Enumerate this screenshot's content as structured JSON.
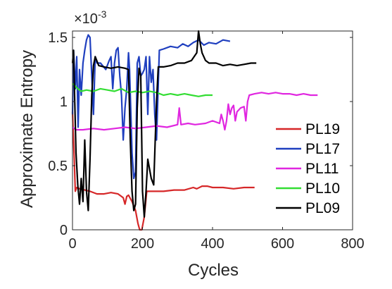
{
  "chart_data": {
    "type": "line",
    "title": "",
    "xlabel": "Cycles",
    "ylabel": "Approximate Entropy",
    "y_exponent_label": "×10",
    "y_exponent_power": "-3",
    "xlim": [
      0,
      800
    ],
    "ylim": [
      0,
      1.55
    ],
    "x_ticks": [
      "0",
      "200",
      "400",
      "600",
      "800"
    ],
    "y_ticks": [
      "0",
      "0.5",
      "1",
      "1.5"
    ],
    "grid": false,
    "legend_position": "right",
    "series": [
      {
        "name": "PL19",
        "color": "#d62728",
        "points": [
          [
            0,
            0.92
          ],
          [
            5,
            0.55
          ],
          [
            8,
            0.3
          ],
          [
            12,
            0.33
          ],
          [
            20,
            0.32
          ],
          [
            35,
            0.31
          ],
          [
            50,
            0.3
          ],
          [
            70,
            0.28
          ],
          [
            90,
            0.28
          ],
          [
            110,
            0.29
          ],
          [
            130,
            0.28
          ],
          [
            145,
            0.25
          ],
          [
            150,
            0.2
          ],
          [
            155,
            0.26
          ],
          [
            160,
            0.27
          ],
          [
            170,
            0.22
          ],
          [
            180,
            0.15
          ],
          [
            187,
            0.05
          ],
          [
            192,
            0.0
          ],
          [
            198,
            0.0
          ],
          [
            205,
            0.1
          ],
          [
            212,
            0.3
          ],
          [
            230,
            0.3
          ],
          [
            260,
            0.3
          ],
          [
            290,
            0.31
          ],
          [
            320,
            0.31
          ],
          [
            345,
            0.33
          ],
          [
            355,
            0.32
          ],
          [
            370,
            0.34
          ],
          [
            385,
            0.34
          ],
          [
            400,
            0.33
          ],
          [
            430,
            0.33
          ],
          [
            460,
            0.32
          ],
          [
            490,
            0.33
          ],
          [
            520,
            0.33
          ]
        ]
      },
      {
        "name": "PL17",
        "color": "#1f3fbf",
        "points": [
          [
            0,
            0.9
          ],
          [
            3,
            1.4
          ],
          [
            8,
            1.1
          ],
          [
            12,
            1.35
          ],
          [
            16,
            0.8
          ],
          [
            20,
            1.25
          ],
          [
            25,
            1.05
          ],
          [
            30,
            1.3
          ],
          [
            35,
            1.4
          ],
          [
            40,
            1.48
          ],
          [
            45,
            1.52
          ],
          [
            50,
            1.5
          ],
          [
            55,
            1.2
          ],
          [
            60,
            0.9
          ],
          [
            65,
            1.35
          ],
          [
            70,
            1.3
          ],
          [
            80,
            1.3
          ],
          [
            95,
            1.25
          ],
          [
            105,
            1.32
          ],
          [
            110,
            1.35
          ],
          [
            115,
            1.1
          ],
          [
            120,
            1.3
          ],
          [
            125,
            1.4
          ],
          [
            130,
            1.42
          ],
          [
            135,
            1.2
          ],
          [
            140,
            1.05
          ],
          [
            145,
            0.7
          ],
          [
            150,
            0.95
          ],
          [
            155,
            1.1
          ],
          [
            160,
            1.38
          ],
          [
            163,
            1.25
          ],
          [
            170,
            0.6
          ],
          [
            175,
            0.4
          ],
          [
            180,
            0.45
          ],
          [
            185,
            1.3
          ],
          [
            190,
            1.35
          ],
          [
            195,
            1.2
          ],
          [
            200,
            1.22
          ],
          [
            205,
            1.25
          ],
          [
            210,
            1.35
          ],
          [
            215,
            0.9
          ],
          [
            220,
            1.35
          ],
          [
            225,
            1.15
          ],
          [
            230,
            1.25
          ],
          [
            235,
            0.9
          ],
          [
            240,
            0.7
          ],
          [
            248,
            1.4
          ],
          [
            260,
            1.41
          ],
          [
            280,
            1.43
          ],
          [
            300,
            1.42
          ],
          [
            315,
            1.45
          ],
          [
            330,
            1.43
          ],
          [
            345,
            1.46
          ],
          [
            360,
            1.48
          ],
          [
            375,
            1.44
          ],
          [
            390,
            1.46
          ],
          [
            410,
            1.45
          ],
          [
            430,
            1.48
          ],
          [
            450,
            1.47
          ]
        ]
      },
      {
        "name": "PL11",
        "color": "#e026e0",
        "points": [
          [
            0,
            0.8
          ],
          [
            10,
            0.78
          ],
          [
            30,
            0.78
          ],
          [
            60,
            0.79
          ],
          [
            90,
            0.78
          ],
          [
            120,
            0.79
          ],
          [
            150,
            0.8
          ],
          [
            180,
            0.79
          ],
          [
            210,
            0.8
          ],
          [
            240,
            0.81
          ],
          [
            270,
            0.8
          ],
          [
            300,
            0.82
          ],
          [
            305,
            0.95
          ],
          [
            310,
            0.82
          ],
          [
            330,
            0.83
          ],
          [
            350,
            0.82
          ],
          [
            380,
            0.83
          ],
          [
            400,
            0.85
          ],
          [
            420,
            0.83
          ],
          [
            425,
            0.9
          ],
          [
            430,
            0.85
          ],
          [
            435,
            0.78
          ],
          [
            440,
            0.85
          ],
          [
            445,
            0.98
          ],
          [
            450,
            0.9
          ],
          [
            455,
            0.95
          ],
          [
            460,
            0.97
          ],
          [
            465,
            0.85
          ],
          [
            470,
            0.92
          ],
          [
            480,
            0.95
          ],
          [
            490,
            0.96
          ],
          [
            495,
            0.85
          ],
          [
            500,
            1.0
          ],
          [
            505,
            1.05
          ],
          [
            520,
            1.06
          ],
          [
            540,
            1.07
          ],
          [
            560,
            1.06
          ],
          [
            580,
            1.07
          ],
          [
            600,
            1.06
          ],
          [
            620,
            1.06
          ],
          [
            640,
            1.05
          ],
          [
            660,
            1.06
          ],
          [
            680,
            1.05
          ],
          [
            700,
            1.05
          ]
        ]
      },
      {
        "name": "PL10",
        "color": "#33dd33",
        "points": [
          [
            0,
            1.14
          ],
          [
            8,
            1.12
          ],
          [
            15,
            1.1
          ],
          [
            25,
            1.08
          ],
          [
            40,
            1.09
          ],
          [
            60,
            1.08
          ],
          [
            80,
            1.1
          ],
          [
            100,
            1.09
          ],
          [
            120,
            1.08
          ],
          [
            140,
            1.1
          ],
          [
            160,
            1.07
          ],
          [
            180,
            1.08
          ],
          [
            200,
            1.07
          ],
          [
            220,
            1.08
          ],
          [
            240,
            1.07
          ],
          [
            260,
            1.05
          ],
          [
            280,
            1.06
          ],
          [
            300,
            1.05
          ],
          [
            320,
            1.06
          ],
          [
            340,
            1.05
          ],
          [
            360,
            1.04
          ],
          [
            380,
            1.05
          ],
          [
            400,
            1.05
          ]
        ]
      },
      {
        "name": "PL09",
        "color": "#000000",
        "points": [
          [
            0,
            1.3
          ],
          [
            3,
            1.4
          ],
          [
            6,
            1.05
          ],
          [
            10,
            0.6
          ],
          [
            15,
            0.35
          ],
          [
            20,
            0.2
          ],
          [
            25,
            0.4
          ],
          [
            30,
            0.22
          ],
          [
            35,
            0.7
          ],
          [
            40,
            0.3
          ],
          [
            45,
            0.15
          ],
          [
            50,
            0.55
          ],
          [
            55,
            1.05
          ],
          [
            60,
            1.28
          ],
          [
            65,
            1.35
          ],
          [
            75,
            1.28
          ],
          [
            90,
            1.27
          ],
          [
            110,
            1.26
          ],
          [
            130,
            1.27
          ],
          [
            150,
            1.26
          ],
          [
            160,
            1.25
          ],
          [
            165,
            0.7
          ],
          [
            170,
            0.3
          ],
          [
            175,
            0.15
          ],
          [
            180,
            0.2
          ],
          [
            185,
            0.95
          ],
          [
            190,
            1.26
          ],
          [
            195,
            1.2
          ],
          [
            200,
            0.3
          ],
          [
            205,
            0.1
          ],
          [
            210,
            0.3
          ],
          [
            215,
            0.55
          ],
          [
            225,
            0.4
          ],
          [
            232,
            0.35
          ],
          [
            240,
            1.0
          ],
          [
            245,
            1.27
          ],
          [
            260,
            1.27
          ],
          [
            280,
            1.28
          ],
          [
            300,
            1.3
          ],
          [
            320,
            1.3
          ],
          [
            340,
            1.32
          ],
          [
            355,
            1.38
          ],
          [
            360,
            1.55
          ],
          [
            365,
            1.45
          ],
          [
            370,
            1.38
          ],
          [
            380,
            1.32
          ],
          [
            390,
            1.3
          ],
          [
            410,
            1.3
          ],
          [
            430,
            1.28
          ],
          [
            450,
            1.29
          ],
          [
            470,
            1.28
          ],
          [
            490,
            1.29
          ],
          [
            510,
            1.3
          ],
          [
            525,
            1.3
          ]
        ]
      }
    ]
  }
}
